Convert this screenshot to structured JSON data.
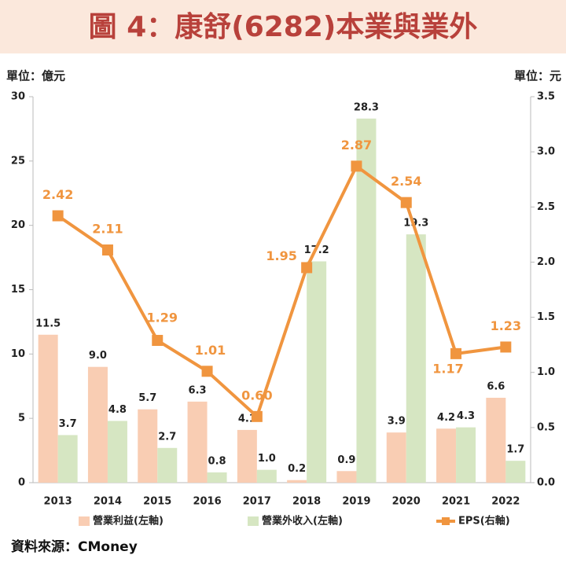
{
  "chart_data": {
    "type": "bar",
    "title": "圖 4：康舒(6282)本業與業外",
    "y_unit": "單位：億元",
    "y2_unit": "單位：元",
    "source": "資料來源：CMoney",
    "categories": [
      "2013",
      "2014",
      "2015",
      "2016",
      "2017",
      "2018",
      "2019",
      "2020",
      "2021",
      "2022"
    ],
    "series": [
      {
        "name": "營業利益(左軸)",
        "type": "bar",
        "color": "#f9cdb3",
        "values": [
          11.5,
          9.0,
          5.7,
          6.3,
          4.1,
          0.2,
          0.9,
          3.9,
          4.2,
          6.6
        ],
        "value_labels": [
          "11.5",
          "9.0",
          "5.7",
          "6.3",
          "4.1",
          "0.2",
          "0.9",
          "3.9",
          "4.2",
          "6.6"
        ]
      },
      {
        "name": "營業外收入(左軸)",
        "type": "bar",
        "color": "#d6e6c2",
        "values": [
          3.7,
          4.8,
          2.7,
          0.8,
          1.0,
          17.2,
          28.3,
          19.3,
          4.3,
          1.7
        ],
        "value_labels": [
          "3.7",
          "4.8",
          "2.7",
          "0.8",
          "1.0",
          "17.2",
          "28.3",
          "19.3",
          "4.3",
          "1.7"
        ]
      },
      {
        "name": "EPS(右軸)",
        "type": "line",
        "axis": "y2",
        "color": "#f0953f",
        "values": [
          2.42,
          2.11,
          1.29,
          1.01,
          0.6,
          1.95,
          2.87,
          2.54,
          1.17,
          1.23
        ],
        "value_labels": [
          "2.42",
          "2.11",
          "1.29",
          "1.01",
          "0.60",
          "1.95",
          "2.87",
          "2.54",
          "1.17",
          "1.23"
        ]
      }
    ],
    "ylim": [
      0,
      30
    ],
    "yticks": [
      0,
      5,
      10,
      15,
      20,
      25,
      30
    ],
    "y2lim": [
      0,
      3.5
    ],
    "y2ticks": [
      {
        "value": 0,
        "label": "0.0"
      },
      0.5,
      {
        "value": 1,
        "label": "1.0"
      },
      1.5,
      {
        "value": 2,
        "label": "2.0"
      },
      2.5,
      {
        "value": 3,
        "label": "3.0"
      },
      3.5
    ]
  }
}
